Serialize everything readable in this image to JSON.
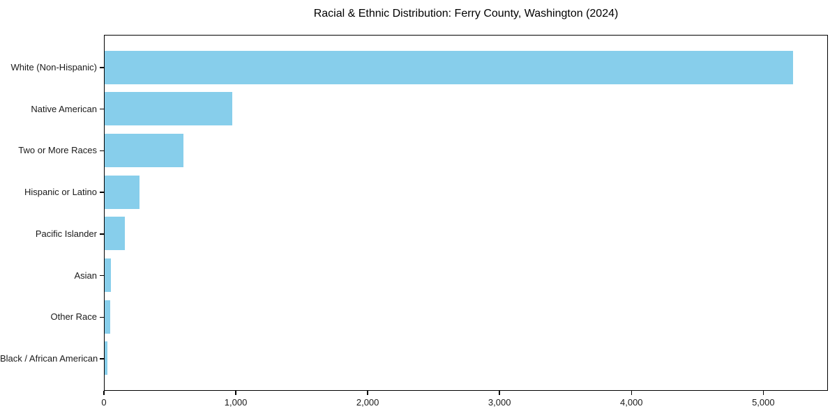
{
  "chart_data": {
    "type": "bar",
    "orientation": "horizontal",
    "title": "Racial & Ethnic Distribution: Ferry County, Washington (2024)",
    "categories": [
      "White (Non-Hispanic)",
      "Native American",
      "Two or More Races",
      "Hispanic or Latino",
      "Pacific Islander",
      "Asian",
      "Other Race",
      "Black / African American"
    ],
    "values": [
      5222,
      968,
      598,
      264,
      153,
      46,
      42,
      21
    ],
    "xlabel": "",
    "ylabel": "",
    "xlim": [
      0,
      5490
    ],
    "x_ticks": [
      0,
      1000,
      2000,
      3000,
      4000,
      5000
    ],
    "x_tick_labels": [
      "0",
      "1,000",
      "2,000",
      "3,000",
      "4,000",
      "5,000"
    ],
    "bar_color": "#87CEEB",
    "axis_color": "#000000",
    "text_color": "#1a1a1a",
    "background_color": "#ffffff",
    "grid": false,
    "legend_position": "none"
  }
}
